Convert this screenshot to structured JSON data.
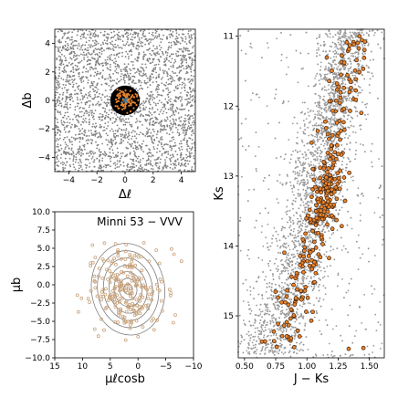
{
  "figure": {
    "width": 436,
    "height": 436
  },
  "chart_data": [
    {
      "type": "scatter",
      "panel": "sky-map",
      "xlabel": "Δℓ",
      "ylabel": "Δb",
      "xlim": [
        -5,
        5
      ],
      "ylim": [
        -5,
        5
      ],
      "xticks": [
        -4,
        -2,
        0,
        2,
        4
      ],
      "yticks": [
        -4,
        -2,
        0,
        2,
        4
      ],
      "field_color": "#808080",
      "cluster_circle_radius": 1.05,
      "cluster_circle_color": "#000000",
      "member_color": "#e8832a",
      "center_marker": {
        "x": 0,
        "y": 0,
        "symbol": "x",
        "color": "#1f77b4"
      },
      "series": [
        {
          "kind": "field",
          "density": "uniform",
          "x_range": [
            -5,
            5
          ],
          "y_range": [
            -5,
            5
          ]
        },
        {
          "kind": "members",
          "center": [
            0.0,
            0.0
          ],
          "spread": 0.45
        }
      ]
    },
    {
      "type": "scatter",
      "panel": "proper-motion",
      "title": "Minni 53 − VVV",
      "xlabel": "μℓcosb",
      "ylabel": "μb",
      "xlim": [
        15,
        -10
      ],
      "ylim": [
        -10,
        10
      ],
      "xticks": [
        15,
        10,
        5,
        0,
        -5,
        -10
      ],
      "yticks": [
        -10.0,
        -7.5,
        -5.0,
        -2.5,
        0.0,
        2.5,
        5.0,
        7.5,
        10.0
      ],
      "point_color": "#c8a27a",
      "contour_color": "#7f7f7f",
      "contours": {
        "center": [
          1.8,
          -0.6
        ],
        "radii_x": [
          0.8,
          1.6,
          2.5,
          3.4,
          4.4,
          5.5,
          6.6
        ],
        "radii_y": [
          0.7,
          1.5,
          2.4,
          3.3,
          4.3,
          5.3,
          6.3
        ]
      },
      "series": [
        {
          "kind": "members",
          "center": [
            1.8,
            -0.6
          ],
          "spread": [
            3.2,
            3.0
          ]
        }
      ]
    },
    {
      "type": "scatter",
      "panel": "cmd",
      "xlabel": "J − Ks",
      "ylabel": "Ks",
      "xlim": [
        0.45,
        1.62
      ],
      "ylim": [
        15.6,
        10.9
      ],
      "xticks": [
        0.5,
        0.75,
        1.0,
        1.25,
        1.5
      ],
      "yticks": [
        11,
        12,
        13,
        14,
        15
      ],
      "field_color": "#9a9a9a",
      "member_color": "#e8832a",
      "member_edge": "#3a2010",
      "series": [
        {
          "kind": "field-sequence",
          "ridge": [
            [
              0.66,
              15.55
            ],
            [
              0.88,
              14.6
            ],
            [
              1.05,
              13.4
            ],
            [
              1.18,
              12.3
            ],
            [
              1.3,
              11.2
            ],
            [
              1.36,
              10.9
            ]
          ],
          "width": 0.1
        },
        {
          "kind": "members",
          "ridge": [
            [
              0.82,
              15.45
            ],
            [
              1.0,
              14.3
            ],
            [
              1.15,
              13.3
            ],
            [
              1.22,
              12.4
            ],
            [
              1.33,
              11.4
            ],
            [
              1.4,
              11.0
            ]
          ],
          "width": 0.07
        }
      ]
    }
  ]
}
